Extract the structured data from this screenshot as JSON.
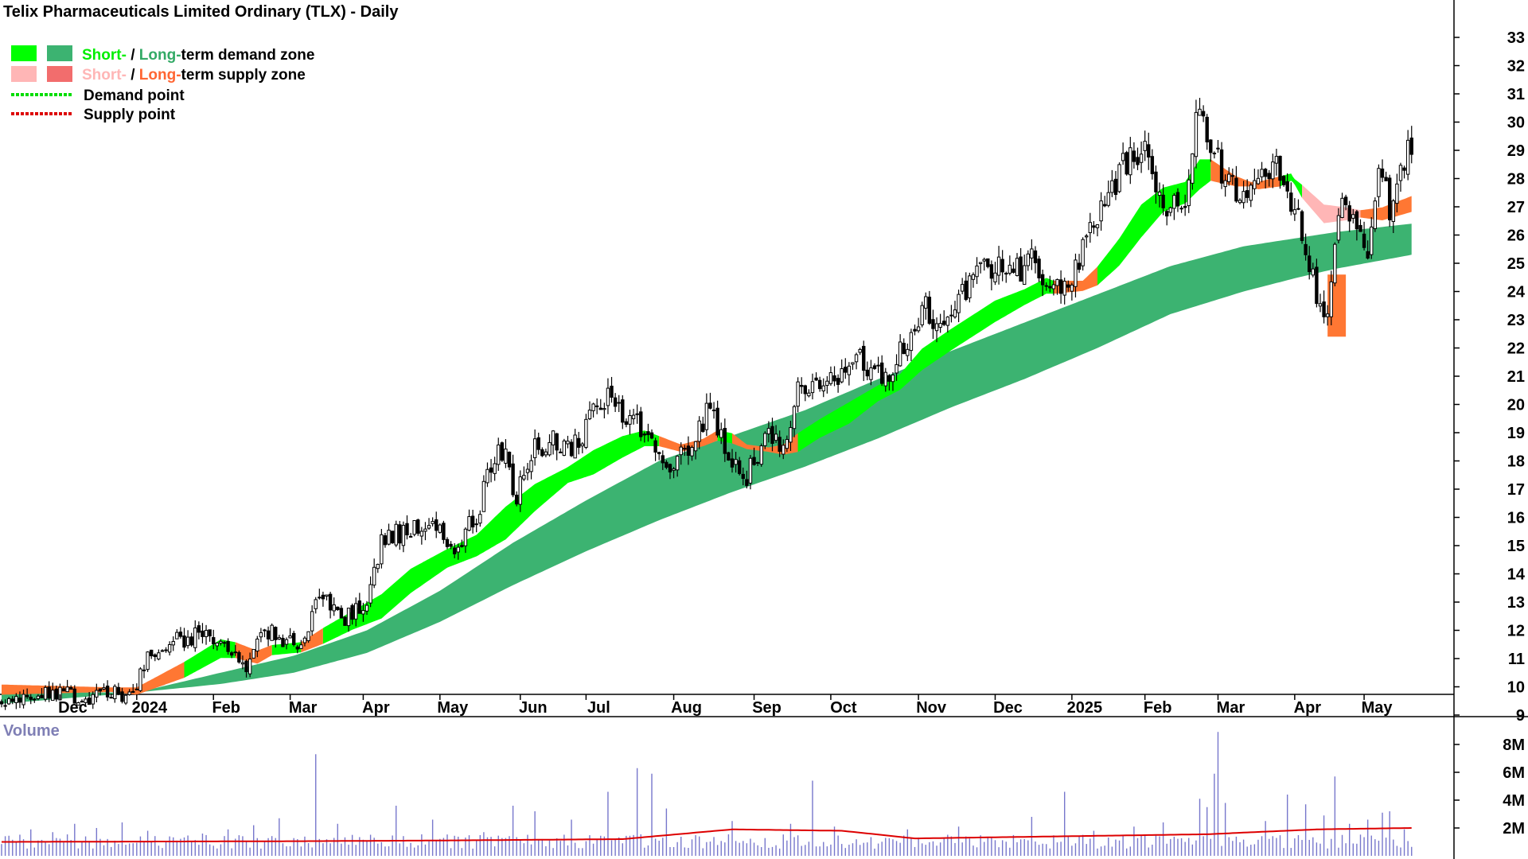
{
  "chart_data": [
    {
      "type": "candlestick",
      "title": "Telix Pharmaceuticals Limited Ordinary (TLX) - Daily",
      "legend": {
        "placement": "top-left",
        "rows": [
          {
            "parts": [
              {
                "text": "Short-",
                "color": "#00ee00"
              },
              {
                "text": " / ",
                "color": "#000000"
              },
              {
                "text": "Long-",
                "color": "#33aa66"
              },
              {
                "text": "term demand zone",
                "color": "#000000"
              }
            ],
            "swatch_short": "#00ff00",
            "swatch_long": "#3cb371"
          },
          {
            "parts": [
              {
                "text": "Short-",
                "color": "#ffb6b6"
              },
              {
                "text": " / ",
                "color": "#000000"
              },
              {
                "text": "Long-",
                "color": "#ff6633"
              },
              {
                "text": "term supply zone",
                "color": "#000000"
              }
            ],
            "swatch_short": "#ffb6b6",
            "swatch_long": "#f26d6d"
          },
          {
            "text": "Demand point",
            "line_color": "#00dd00"
          },
          {
            "text": "Supply point",
            "line_color": "#dd0000"
          }
        ]
      },
      "y_axis": {
        "position": "right",
        "min": 8.5,
        "max": 33.5,
        "ticks": [
          9,
          10,
          11,
          12,
          13,
          14,
          15,
          16,
          17,
          18,
          19,
          20,
          21,
          22,
          23,
          24,
          25,
          26,
          27,
          28,
          29,
          30,
          31,
          32,
          33
        ]
      },
      "x_axis": {
        "months": [
          {
            "label": "Dec",
            "t": 16
          },
          {
            "label": "2024",
            "t": 37
          },
          {
            "label": "Feb",
            "t": 58
          },
          {
            "label": "Mar",
            "t": 79
          },
          {
            "label": "Apr",
            "t": 99
          },
          {
            "label": "May",
            "t": 120
          },
          {
            "label": "Jun",
            "t": 142
          },
          {
            "label": "Jul",
            "t": 160
          },
          {
            "label": "Aug",
            "t": 184
          },
          {
            "label": "Sep",
            "t": 206
          },
          {
            "label": "Oct",
            "t": 227
          },
          {
            "label": "Nov",
            "t": 251
          },
          {
            "label": "Dec",
            "t": 272
          },
          {
            "label": "2025",
            "t": 293
          },
          {
            "label": "Feb",
            "t": 313
          },
          {
            "label": "Mar",
            "t": 333
          },
          {
            "label": "Apr",
            "t": 354
          },
          {
            "label": "May",
            "t": 373
          }
        ]
      },
      "price_keypoints": [
        [
          0,
          9.4
        ],
        [
          6,
          9.6
        ],
        [
          12,
          9.7
        ],
        [
          18,
          9.8
        ],
        [
          24,
          9.6
        ],
        [
          30,
          9.7
        ],
        [
          36,
          9.8
        ],
        [
          40,
          11.0
        ],
        [
          46,
          11.5
        ],
        [
          52,
          11.8
        ],
        [
          56,
          12.0
        ],
        [
          62,
          11.2
        ],
        [
          67,
          10.6
        ],
        [
          71,
          12.1
        ],
        [
          76,
          11.8
        ],
        [
          82,
          11.6
        ],
        [
          88,
          13.3
        ],
        [
          94,
          12.5
        ],
        [
          100,
          12.8
        ],
        [
          104,
          15.2
        ],
        [
          110,
          15.5
        ],
        [
          118,
          15.6
        ],
        [
          124,
          14.9
        ],
        [
          130,
          16.0
        ],
        [
          136,
          18.8
        ],
        [
          141,
          16.8
        ],
        [
          146,
          18.4
        ],
        [
          150,
          18.8
        ],
        [
          156,
          18.5
        ],
        [
          162,
          19.6
        ],
        [
          166,
          20.2
        ],
        [
          172,
          19.4
        ],
        [
          176,
          19.0
        ],
        [
          182,
          17.5
        ],
        [
          188,
          18.5
        ],
        [
          194,
          19.9
        ],
        [
          198,
          18.5
        ],
        [
          204,
          17.5
        ],
        [
          210,
          18.8
        ],
        [
          214,
          18.5
        ],
        [
          218,
          20.5
        ],
        [
          224,
          20.6
        ],
        [
          230,
          21.3
        ],
        [
          236,
          21.6
        ],
        [
          242,
          20.8
        ],
        [
          248,
          22.4
        ],
        [
          253,
          23.5
        ],
        [
          258,
          22.5
        ],
        [
          264,
          24.0
        ],
        [
          270,
          25.0
        ],
        [
          276,
          24.5
        ],
        [
          282,
          25.0
        ],
        [
          287,
          24.1
        ],
        [
          292,
          24.2
        ],
        [
          298,
          26.0
        ],
        [
          303,
          27.3
        ],
        [
          307,
          28.6
        ],
        [
          312,
          29.1
        ],
        [
          316,
          27.8
        ],
        [
          320,
          27.0
        ],
        [
          324,
          26.8
        ],
        [
          328,
          31.0
        ],
        [
          332,
          28.7
        ],
        [
          338,
          27.6
        ],
        [
          342,
          27.3
        ],
        [
          348,
          28.6
        ],
        [
          352,
          27.5
        ],
        [
          356,
          26.0
        ],
        [
          359,
          24.5
        ],
        [
          362,
          22.7
        ],
        [
          364,
          24.0
        ],
        [
          366,
          26.8
        ],
        [
          368,
          27.0
        ],
        [
          371,
          26.3
        ],
        [
          374,
          25.4
        ],
        [
          377,
          28.2
        ],
        [
          380,
          27.0
        ],
        [
          384,
          28.4
        ],
        [
          386,
          29.3
        ]
      ],
      "seed": 20240501,
      "short_zone_keypoints": [
        [
          0,
          9.8,
          10.0,
          "supply"
        ],
        [
          30,
          9.9,
          9.9,
          "supply"
        ],
        [
          37,
          9.9,
          9.8,
          "supply"
        ],
        [
          50,
          10.8,
          10.4,
          "demand"
        ],
        [
          60,
          11.6,
          11.1,
          "demand"
        ],
        [
          64,
          11.5,
          11.1,
          "supply"
        ],
        [
          70,
          11.2,
          10.9,
          "supply"
        ],
        [
          74,
          11.4,
          11.2,
          "demand"
        ],
        [
          82,
          11.5,
          11.3,
          "supply"
        ],
        [
          88,
          12.0,
          11.6,
          "demand"
        ],
        [
          96,
          12.6,
          12.1,
          "demand"
        ],
        [
          104,
          13.2,
          12.5,
          "demand"
        ],
        [
          112,
          14.1,
          13.4,
          "demand"
        ],
        [
          122,
          14.8,
          14.3,
          "demand"
        ],
        [
          130,
          15.3,
          14.7,
          "demand"
        ],
        [
          138,
          16.3,
          15.3,
          "demand"
        ],
        [
          146,
          17.1,
          16.3,
          "demand"
        ],
        [
          155,
          17.7,
          17.3,
          "demand"
        ],
        [
          162,
          18.3,
          17.6,
          "demand"
        ],
        [
          170,
          18.8,
          18.2,
          "demand"
        ],
        [
          176,
          19.0,
          18.6,
          "demand"
        ],
        [
          180,
          18.8,
          18.6,
          "supply"
        ],
        [
          186,
          18.5,
          18.4,
          "supply"
        ],
        [
          192,
          18.7,
          18.6,
          "supply"
        ],
        [
          196,
          19.0,
          18.8,
          "demand"
        ],
        [
          200,
          18.9,
          18.7,
          "supply"
        ],
        [
          204,
          18.5,
          18.5,
          "supply"
        ],
        [
          210,
          18.4,
          18.4,
          "supply"
        ],
        [
          214,
          18.5,
          18.3,
          "supply"
        ],
        [
          218,
          18.9,
          18.4,
          "demand"
        ],
        [
          224,
          19.4,
          18.9,
          "demand"
        ],
        [
          232,
          20.0,
          19.4,
          "demand"
        ],
        [
          240,
          20.6,
          20.2,
          "demand"
        ],
        [
          246,
          21.0,
          20.6,
          "demand"
        ],
        [
          252,
          21.9,
          21.3,
          "demand"
        ],
        [
          260,
          22.6,
          22.0,
          "demand"
        ],
        [
          266,
          23.1,
          22.5,
          "demand"
        ],
        [
          272,
          23.6,
          23.0,
          "demand"
        ],
        [
          280,
          24.0,
          23.6,
          "demand"
        ],
        [
          286,
          24.4,
          24.0,
          "demand"
        ],
        [
          288,
          24.3,
          24.0,
          "supply"
        ],
        [
          296,
          24.3,
          24.1,
          "supply"
        ],
        [
          300,
          24.8,
          24.3,
          "demand"
        ],
        [
          306,
          25.8,
          25.0,
          "demand"
        ],
        [
          312,
          27.0,
          26.0,
          "demand"
        ],
        [
          318,
          27.6,
          26.9,
          "demand"
        ],
        [
          324,
          27.8,
          27.2,
          "demand"
        ],
        [
          328,
          28.6,
          27.7,
          "demand"
        ],
        [
          331,
          28.6,
          28.0,
          "supply"
        ],
        [
          338,
          28.0,
          27.8,
          "supply"
        ],
        [
          344,
          27.7,
          27.8,
          "supply"
        ],
        [
          350,
          27.8,
          28.0,
          "demand"
        ],
        [
          353,
          28.0,
          28.1,
          "demand"
        ],
        [
          356,
          27.7,
          27.4,
          "supply_light"
        ],
        [
          362,
          27.0,
          26.5,
          "supply_light"
        ],
        [
          368,
          26.9,
          26.6,
          "supply_light"
        ],
        [
          372,
          26.8,
          26.7,
          "supply"
        ],
        [
          378,
          26.9,
          26.6,
          "supply"
        ],
        [
          386,
          27.3,
          26.9,
          "supply"
        ]
      ],
      "long_zone_keypoints": [
        [
          0,
          9.4,
          9.8
        ],
        [
          37,
          9.8,
          9.8
        ],
        [
          60,
          10.1,
          10.5
        ],
        [
          80,
          10.5,
          11.1
        ],
        [
          100,
          11.2,
          12.0
        ],
        [
          120,
          12.3,
          13.4
        ],
        [
          140,
          13.6,
          15.1
        ],
        [
          160,
          14.8,
          16.6
        ],
        [
          180,
          15.9,
          18.0
        ],
        [
          200,
          16.9,
          18.9
        ],
        [
          220,
          17.8,
          19.8
        ],
        [
          240,
          18.8,
          20.9
        ],
        [
          260,
          19.9,
          21.9
        ],
        [
          280,
          20.9,
          22.9
        ],
        [
          300,
          22.0,
          23.9
        ],
        [
          320,
          23.2,
          24.9
        ],
        [
          340,
          24.0,
          25.6
        ],
        [
          355,
          24.5,
          25.9
        ],
        [
          365,
          24.8,
          26.1
        ],
        [
          386,
          25.3,
          26.4
        ]
      ],
      "long_supply_keypoints": [
        [
          363,
          22.4,
          24.6
        ],
        [
          364,
          22.4,
          24.6
        ],
        [
          366,
          22.4,
          24.6
        ],
        [
          368,
          22.5,
          24.7
        ]
      ],
      "colors": {
        "candle": "#000000",
        "short_demand": "#00ff00",
        "short_supply": "#ff7733",
        "short_supply_light": "#ffb6b6",
        "long_demand": "#3cb371",
        "long_supply": "#ff7733"
      }
    },
    {
      "type": "bar",
      "title": "Volume",
      "y_axis": {
        "position": "right",
        "ticks": [
          {
            "value": 2000000,
            "label": "2M"
          },
          {
            "value": 4000000,
            "label": "4M"
          },
          {
            "value": 6000000,
            "label": "6M"
          },
          {
            "value": 8000000,
            "label": "8M"
          }
        ],
        "max": 9400000
      },
      "base_volume": 1150000,
      "spikes": [
        [
          8,
          1900000
        ],
        [
          14,
          1700000
        ],
        [
          20,
          2300000
        ],
        [
          26,
          2000000
        ],
        [
          33,
          2400000
        ],
        [
          40,
          1800000
        ],
        [
          55,
          1600000
        ],
        [
          62,
          1900000
        ],
        [
          69,
          2200000
        ],
        [
          76,
          2700000
        ],
        [
          86,
          7300000
        ],
        [
          92,
          2300000
        ],
        [
          108,
          3600000
        ],
        [
          118,
          2600000
        ],
        [
          132,
          1700000
        ],
        [
          140,
          3600000
        ],
        [
          146,
          3200000
        ],
        [
          156,
          2600000
        ],
        [
          166,
          4600000
        ],
        [
          174,
          6300000
        ],
        [
          178,
          5900000
        ],
        [
          182,
          3400000
        ],
        [
          200,
          2500000
        ],
        [
          216,
          2300000
        ],
        [
          222,
          5400000
        ],
        [
          228,
          2100000
        ],
        [
          248,
          1900000
        ],
        [
          262,
          2100000
        ],
        [
          282,
          2800000
        ],
        [
          291,
          4600000
        ],
        [
          299,
          1800000
        ],
        [
          310,
          2100000
        ],
        [
          318,
          2400000
        ],
        [
          328,
          4100000
        ],
        [
          330,
          3500000
        ],
        [
          332,
          5900000
        ],
        [
          333,
          8900000
        ],
        [
          335,
          3800000
        ],
        [
          346,
          2500000
        ],
        [
          352,
          4400000
        ],
        [
          357,
          3700000
        ],
        [
          362,
          2900000
        ],
        [
          365,
          5700000
        ],
        [
          369,
          2300000
        ],
        [
          374,
          2600000
        ],
        [
          378,
          3100000
        ],
        [
          380,
          3200000
        ],
        [
          384,
          1900000
        ]
      ],
      "moving_average_keypoints": [
        [
          0,
          1000000
        ],
        [
          80,
          1050000
        ],
        [
          120,
          1100000
        ],
        [
          170,
          1200000
        ],
        [
          200,
          1900000
        ],
        [
          230,
          1800000
        ],
        [
          250,
          1250000
        ],
        [
          290,
          1400000
        ],
        [
          330,
          1550000
        ],
        [
          360,
          1900000
        ],
        [
          386,
          2000000
        ]
      ],
      "bar_color": "#7777cc",
      "ma_color": "#dd0000"
    }
  ]
}
